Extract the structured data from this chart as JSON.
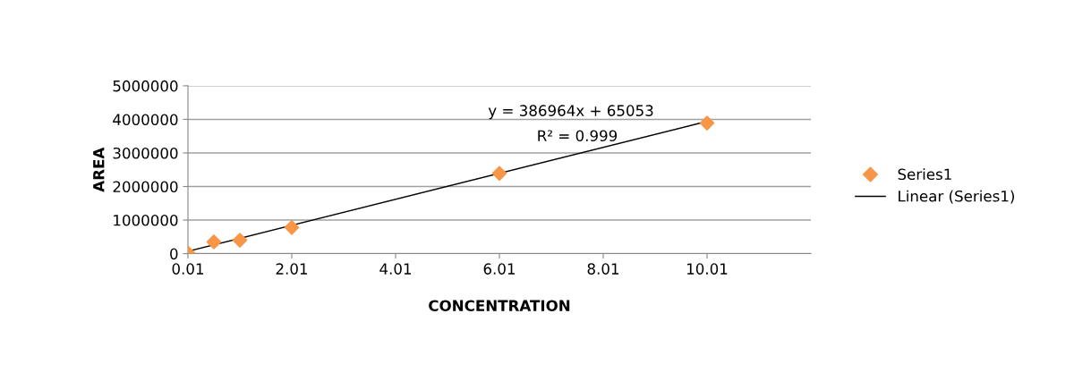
{
  "chart_data": {
    "type": "scatter",
    "xlabel": "CONCENTRATION",
    "ylabel": "AREA",
    "xlim": [
      0.01,
      12.01
    ],
    "xticks": [
      0.01,
      2.01,
      4.01,
      6.01,
      8.01,
      10.01
    ],
    "ylim": [
      0,
      5000000
    ],
    "yticks": [
      0,
      1000000,
      2000000,
      3000000,
      4000000,
      5000000
    ],
    "grid": "y",
    "legend": "right",
    "series": [
      {
        "name": "Series1",
        "marker": "diamond",
        "color": "#f79646",
        "x": [
          0.01,
          0.51,
          1.01,
          2.01,
          6.01,
          10.01
        ],
        "values": [
          20000,
          350000,
          400000,
          780000,
          2390000,
          3890000
        ]
      },
      {
        "name": "Linear (Series1)",
        "type": "line",
        "color": "#000000",
        "x": [
          0.01,
          10.01
        ],
        "values": [
          70000,
          3940000
        ]
      }
    ],
    "annotations": [
      "y = 386964x + 65053",
      "R² = 0.999"
    ]
  }
}
